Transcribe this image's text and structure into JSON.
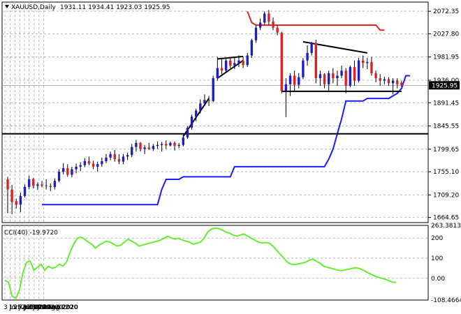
{
  "header": {
    "symbol": "XAUUSD,Daily",
    "ohlc": "1931.11 1934.41 1923.03 1925.95"
  },
  "chart_data": [
    {
      "type": "candlestick",
      "panel": "price",
      "y_ticks": [
        "2072.35",
        "2027.80",
        "1981.95",
        "1936.00",
        "1891.45",
        "1845.55",
        "1799.65",
        "1755.10",
        "1709.20",
        "1664.65"
      ],
      "y_tick_values": [
        2072.35,
        2027.8,
        1981.95,
        1936.0,
        1891.45,
        1845.55,
        1799.65,
        1755.1,
        1709.2,
        1664.65
      ],
      "ylim": [
        1660,
        2085
      ],
      "last_price_label": "1925.95",
      "last_price": 1925.95,
      "candles": [
        {
          "o": 1740,
          "h": 1745,
          "l": 1673,
          "c": 1720
        },
        {
          "o": 1720,
          "h": 1729,
          "l": 1671,
          "c": 1695
        },
        {
          "o": 1697,
          "h": 1702,
          "l": 1682,
          "c": 1690
        },
        {
          "o": 1690,
          "h": 1714,
          "l": 1675,
          "c": 1707
        },
        {
          "o": 1707,
          "h": 1730,
          "l": 1704,
          "c": 1725
        },
        {
          "o": 1725,
          "h": 1747,
          "l": 1720,
          "c": 1740
        },
        {
          "o": 1740,
          "h": 1743,
          "l": 1722,
          "c": 1727
        },
        {
          "o": 1727,
          "h": 1734,
          "l": 1719,
          "c": 1730
        },
        {
          "o": 1730,
          "h": 1737,
          "l": 1724,
          "c": 1727
        },
        {
          "o": 1727,
          "h": 1740,
          "l": 1720,
          "c": 1728
        },
        {
          "o": 1727,
          "h": 1732,
          "l": 1717,
          "c": 1725
        },
        {
          "o": 1725,
          "h": 1742,
          "l": 1720,
          "c": 1737
        },
        {
          "o": 1737,
          "h": 1760,
          "l": 1734,
          "c": 1755
        },
        {
          "o": 1755,
          "h": 1772,
          "l": 1750,
          "c": 1762
        },
        {
          "o": 1762,
          "h": 1770,
          "l": 1745,
          "c": 1749
        },
        {
          "o": 1749,
          "h": 1765,
          "l": 1744,
          "c": 1760
        },
        {
          "o": 1760,
          "h": 1771,
          "l": 1752,
          "c": 1765
        },
        {
          "o": 1765,
          "h": 1774,
          "l": 1756,
          "c": 1768
        },
        {
          "o": 1768,
          "h": 1782,
          "l": 1764,
          "c": 1776
        },
        {
          "o": 1776,
          "h": 1785,
          "l": 1768,
          "c": 1771
        },
        {
          "o": 1771,
          "h": 1777,
          "l": 1760,
          "c": 1765
        },
        {
          "o": 1765,
          "h": 1775,
          "l": 1755,
          "c": 1770
        },
        {
          "o": 1770,
          "h": 1783,
          "l": 1765,
          "c": 1776
        },
        {
          "o": 1776,
          "h": 1790,
          "l": 1772,
          "c": 1783
        },
        {
          "o": 1783,
          "h": 1795,
          "l": 1778,
          "c": 1790
        },
        {
          "o": 1790,
          "h": 1798,
          "l": 1775,
          "c": 1780
        },
        {
          "o": 1780,
          "h": 1790,
          "l": 1770,
          "c": 1775
        },
        {
          "o": 1775,
          "h": 1790,
          "l": 1770,
          "c": 1785
        },
        {
          "o": 1785,
          "h": 1793,
          "l": 1778,
          "c": 1788
        },
        {
          "o": 1788,
          "h": 1810,
          "l": 1784,
          "c": 1804
        },
        {
          "o": 1804,
          "h": 1818,
          "l": 1795,
          "c": 1812
        },
        {
          "o": 1812,
          "h": 1814,
          "l": 1795,
          "c": 1800
        },
        {
          "o": 1800,
          "h": 1808,
          "l": 1790,
          "c": 1803
        },
        {
          "o": 1803,
          "h": 1812,
          "l": 1798,
          "c": 1800
        },
        {
          "o": 1800,
          "h": 1810,
          "l": 1796,
          "c": 1806
        },
        {
          "o": 1806,
          "h": 1815,
          "l": 1800,
          "c": 1808
        },
        {
          "o": 1808,
          "h": 1814,
          "l": 1795,
          "c": 1810
        },
        {
          "o": 1810,
          "h": 1817,
          "l": 1800,
          "c": 1807
        },
        {
          "o": 1807,
          "h": 1815,
          "l": 1805,
          "c": 1812
        },
        {
          "o": 1812,
          "h": 1815,
          "l": 1797,
          "c": 1806
        },
        {
          "o": 1806,
          "h": 1812,
          "l": 1802,
          "c": 1808
        },
        {
          "o": 1808,
          "h": 1828,
          "l": 1805,
          "c": 1823
        },
        {
          "o": 1823,
          "h": 1845,
          "l": 1820,
          "c": 1842
        },
        {
          "o": 1842,
          "h": 1868,
          "l": 1838,
          "c": 1864
        },
        {
          "o": 1864,
          "h": 1880,
          "l": 1855,
          "c": 1876
        },
        {
          "o": 1876,
          "h": 1898,
          "l": 1870,
          "c": 1890
        },
        {
          "o": 1890,
          "h": 1908,
          "l": 1885,
          "c": 1897
        },
        {
          "o": 1897,
          "h": 1905,
          "l": 1885,
          "c": 1895
        },
        {
          "o": 1895,
          "h": 1945,
          "l": 1893,
          "c": 1940
        },
        {
          "o": 1940,
          "h": 1982,
          "l": 1935,
          "c": 1960
        },
        {
          "o": 1960,
          "h": 1980,
          "l": 1948,
          "c": 1955
        },
        {
          "o": 1955,
          "h": 1980,
          "l": 1950,
          "c": 1975
        },
        {
          "o": 1975,
          "h": 1982,
          "l": 1960,
          "c": 1965
        },
        {
          "o": 1965,
          "h": 1982,
          "l": 1958,
          "c": 1970
        },
        {
          "o": 1970,
          "h": 1985,
          "l": 1962,
          "c": 1975
        },
        {
          "o": 1975,
          "h": 1983,
          "l": 1960,
          "c": 1966
        },
        {
          "o": 1966,
          "h": 1990,
          "l": 1962,
          "c": 1985
        },
        {
          "o": 1985,
          "h": 2018,
          "l": 1980,
          "c": 2015
        },
        {
          "o": 2015,
          "h": 2045,
          "l": 2010,
          "c": 2040
        },
        {
          "o": 2040,
          "h": 2058,
          "l": 2035,
          "c": 2050
        },
        {
          "o": 2050,
          "h": 2072,
          "l": 2045,
          "c": 2068
        },
        {
          "o": 2068,
          "h": 2075,
          "l": 2045,
          "c": 2052
        },
        {
          "o": 2052,
          "h": 2060,
          "l": 2035,
          "c": 2040
        },
        {
          "o": 2040,
          "h": 2045,
          "l": 2025,
          "c": 2030
        },
        {
          "o": 2030,
          "h": 2032,
          "l": 1910,
          "c": 1915
        },
        {
          "o": 1915,
          "h": 1940,
          "l": 1863,
          "c": 1928
        },
        {
          "o": 1928,
          "h": 1950,
          "l": 1905,
          "c": 1945
        },
        {
          "o": 1945,
          "h": 1955,
          "l": 1915,
          "c": 1927
        },
        {
          "o": 1927,
          "h": 1950,
          "l": 1920,
          "c": 1942
        },
        {
          "o": 1942,
          "h": 1980,
          "l": 1938,
          "c": 1975
        },
        {
          "o": 1975,
          "h": 2005,
          "l": 1965,
          "c": 1990
        },
        {
          "o": 1990,
          "h": 2012,
          "l": 1985,
          "c": 2010
        },
        {
          "o": 2010,
          "h": 2016,
          "l": 1930,
          "c": 1940
        },
        {
          "o": 1940,
          "h": 1955,
          "l": 1925,
          "c": 1948
        },
        {
          "o": 1948,
          "h": 1950,
          "l": 1920,
          "c": 1928
        },
        {
          "o": 1928,
          "h": 1955,
          "l": 1915,
          "c": 1950
        },
        {
          "o": 1950,
          "h": 1960,
          "l": 1930,
          "c": 1940
        },
        {
          "o": 1940,
          "h": 1955,
          "l": 1925,
          "c": 1945
        },
        {
          "o": 1945,
          "h": 1965,
          "l": 1940,
          "c": 1955
        },
        {
          "o": 1955,
          "h": 1960,
          "l": 1910,
          "c": 1925
        },
        {
          "o": 1925,
          "h": 1965,
          "l": 1922,
          "c": 1962
        },
        {
          "o": 1962,
          "h": 1975,
          "l": 1925,
          "c": 1935
        },
        {
          "o": 1935,
          "h": 1980,
          "l": 1932,
          "c": 1975
        },
        {
          "o": 1975,
          "h": 1985,
          "l": 1960,
          "c": 1970
        },
        {
          "o": 1970,
          "h": 1980,
          "l": 1958,
          "c": 1972
        },
        {
          "o": 1972,
          "h": 1982,
          "l": 1945,
          "c": 1950
        },
        {
          "o": 1950,
          "h": 1955,
          "l": 1932,
          "c": 1940
        },
        {
          "o": 1940,
          "h": 1948,
          "l": 1925,
          "c": 1935
        },
        {
          "o": 1935,
          "h": 1943,
          "l": 1928,
          "c": 1938
        },
        {
          "o": 1938,
          "h": 1942,
          "l": 1925,
          "c": 1930
        },
        {
          "o": 1930,
          "h": 1940,
          "l": 1908,
          "c": 1935
        },
        {
          "o": 1935,
          "h": 1940,
          "l": 1920,
          "c": 1928
        },
        {
          "o": 1931.11,
          "h": 1934.41,
          "l": 1923.03,
          "c": 1925.95
        }
      ],
      "blue_line": [
        1690,
        1690,
        1690,
        1690,
        1690,
        1690,
        1690,
        1690,
        1690,
        1690,
        1690,
        1690,
        1690,
        1690,
        1690,
        1690,
        1690,
        1690,
        1690,
        1690,
        1690,
        1690,
        1690,
        1690,
        1690,
        1690,
        1690,
        1690,
        1720,
        1740,
        1740,
        1740,
        1740,
        1745,
        1745,
        1745,
        1745,
        1745,
        1745,
        1745,
        1745,
        1745,
        1745,
        1745,
        1745,
        1765,
        1765,
        1765,
        1765,
        1765,
        1765,
        1765,
        1765,
        1765,
        1765,
        1765,
        1765,
        1765,
        1765,
        1765,
        1765,
        1765,
        1765,
        1765,
        1765,
        1765,
        1765,
        1780,
        1800,
        1830,
        1860,
        1895,
        1895,
        1895,
        1895,
        1895,
        1900,
        1900,
        1900,
        1900,
        1900,
        1900,
        1905,
        1910,
        1920,
        1945,
        1945
      ],
      "red_line": [
        2072,
        2050,
        2045,
        2045,
        2045,
        2045,
        2045,
        2045,
        2045,
        2045,
        2045,
        2045,
        2045,
        2045,
        2045,
        2045,
        2045,
        2045,
        2045,
        2045,
        2045,
        2045,
        2045,
        2045,
        2045,
        2045,
        2045,
        2045,
        2045,
        2045,
        2045,
        2035,
        2035
      ],
      "trendlines": "support 1914, resistance triangle",
      "horizontal_level": 1830
    },
    {
      "type": "line",
      "panel": "indicator",
      "label": "CCI(40) -19.9720",
      "y_ticks": [
        "263.3813",
        "200",
        "100",
        "0.00",
        "-108.4664"
      ],
      "y_tick_values": [
        263.3813,
        200,
        100,
        0,
        -108.4664
      ],
      "ylim": [
        -108.4664,
        263.3813
      ],
      "values": [
        -10,
        -20,
        -90,
        -100,
        -60,
        30,
        80,
        85,
        40,
        55,
        70,
        40,
        60,
        50,
        55,
        70,
        60,
        80,
        130,
        170,
        200,
        205,
        195,
        180,
        170,
        150,
        165,
        175,
        185,
        180,
        170,
        160,
        165,
        180,
        195,
        185,
        175,
        160,
        165,
        170,
        175,
        180,
        185,
        190,
        200,
        210,
        200,
        195,
        200,
        190,
        185,
        180,
        170,
        175,
        180,
        200,
        230,
        245,
        250,
        248,
        240,
        230,
        225,
        215,
        210,
        215,
        220,
        210,
        200,
        190,
        180,
        175,
        178,
        175,
        160,
        140,
        120,
        100,
        80,
        70,
        68,
        72,
        75,
        80,
        90,
        95,
        85,
        75,
        60,
        55,
        50,
        45,
        40,
        38,
        42,
        45,
        50,
        52,
        48,
        40,
        30,
        20,
        12,
        5,
        0,
        -5,
        -12,
        -20,
        -19.97
      ],
      "current_value": -19.972
    }
  ],
  "x_axis_labels": [
    "3 Jun 2020",
    "15 Jun 2020",
    "25 Jun 2020",
    "7 Jul 2020",
    "17 Jul 2020",
    "29 Jul 2020",
    "10 Aug 2020",
    "20 Aug 2020",
    "1 Sep 2020"
  ],
  "x_axis_positions": [
    0.0,
    0.165,
    0.313,
    0.463,
    0.611,
    0.752,
    0.911,
    1.06,
    1.21
  ],
  "colors": {
    "bull": "#1c1cc8",
    "bear": "#e02020",
    "cci_line": "#66ee33",
    "blue_line": "#1c1cff",
    "red_line": "#ee2222",
    "grid": "#b9b9b9",
    "axis_text": "#000000"
  }
}
